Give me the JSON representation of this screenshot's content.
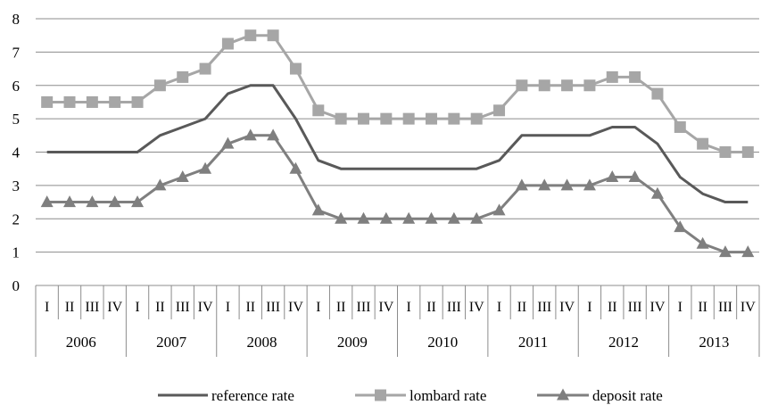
{
  "chart_data": {
    "type": "line",
    "title": "",
    "xlabel": "",
    "ylabel": "",
    "ylim": [
      0,
      8
    ],
    "yticks": [
      0,
      1,
      2,
      3,
      4,
      5,
      6,
      7,
      8
    ],
    "grid": true,
    "legend_position": "bottom",
    "quarters": [
      "I",
      "II",
      "III",
      "IV"
    ],
    "years": [
      "2006",
      "2007",
      "2008",
      "2009",
      "2010",
      "2011",
      "2012",
      "2013"
    ],
    "categories": [
      "2006 I",
      "2006 II",
      "2006 III",
      "2006 IV",
      "2007 I",
      "2007 II",
      "2007 III",
      "2007 IV",
      "2008 I",
      "2008 II",
      "2008 III",
      "2008 IV",
      "2009 I",
      "2009 II",
      "2009 III",
      "2009 IV",
      "2010 I",
      "2010 II",
      "2010 III",
      "2010 IV",
      "2011 I",
      "2011 II",
      "2011 III",
      "2011 IV",
      "2012 I",
      "2012 II",
      "2012 III",
      "2012 IV",
      "2013 I",
      "2013 II",
      "2013 III",
      "2013 IV"
    ],
    "series": [
      {
        "name": "reference rate",
        "color": "#595959",
        "marker": "none",
        "values": [
          4,
          4,
          4,
          4,
          4,
          4.5,
          4.75,
          5,
          5.75,
          6,
          6,
          5,
          3.75,
          3.5,
          3.5,
          3.5,
          3.5,
          3.5,
          3.5,
          3.5,
          3.75,
          4.5,
          4.5,
          4.5,
          4.5,
          4.75,
          4.75,
          4.25,
          3.25,
          2.75,
          2.5,
          2.5
        ]
      },
      {
        "name": "lombard rate",
        "color": "#a6a6a6",
        "marker": "square",
        "values": [
          5.5,
          5.5,
          5.5,
          5.5,
          5.5,
          6,
          6.25,
          6.5,
          7.25,
          7.5,
          7.5,
          6.5,
          5.25,
          5,
          5,
          5,
          5,
          5,
          5,
          5,
          5.25,
          6,
          6,
          6,
          6,
          6.25,
          6.25,
          5.75,
          4.75,
          4.25,
          4,
          4
        ]
      },
      {
        "name": "deposit rate",
        "color": "#7f7f7f",
        "marker": "triangle",
        "values": [
          2.5,
          2.5,
          2.5,
          2.5,
          2.5,
          3,
          3.25,
          3.5,
          4.25,
          4.5,
          4.5,
          3.5,
          2.25,
          2,
          2,
          2,
          2,
          2,
          2,
          2,
          2.25,
          3,
          3,
          3,
          3,
          3.25,
          3.25,
          2.75,
          1.75,
          1.25,
          1,
          1
        ]
      }
    ]
  }
}
